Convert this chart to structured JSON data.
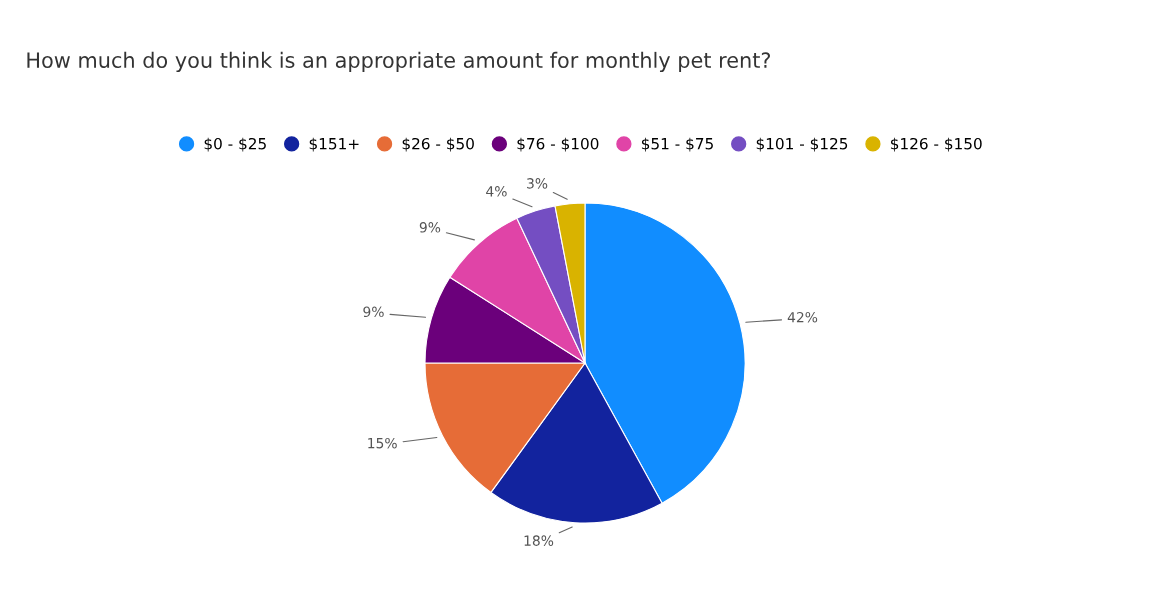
{
  "chart_data": {
    "type": "pie",
    "title": "How much do you think is an appropriate amount for monthly pet rent?",
    "categories": [
      "$0 - $25",
      "$151+",
      "$26 - $50",
      "$76 - $100",
      "$51 - $75",
      "$101 - $125",
      "$126 - $150"
    ],
    "values": [
      42,
      18,
      15,
      9,
      9,
      4,
      3
    ],
    "colors": [
      "#118dff",
      "#12239e",
      "#e66c37",
      "#6b007b",
      "#e044a7",
      "#744ec2",
      "#d9b300"
    ],
    "value_labels": [
      "42%",
      "18%",
      "15%",
      "9%",
      "9%",
      "4%",
      "3%"
    ],
    "legend": "top"
  }
}
